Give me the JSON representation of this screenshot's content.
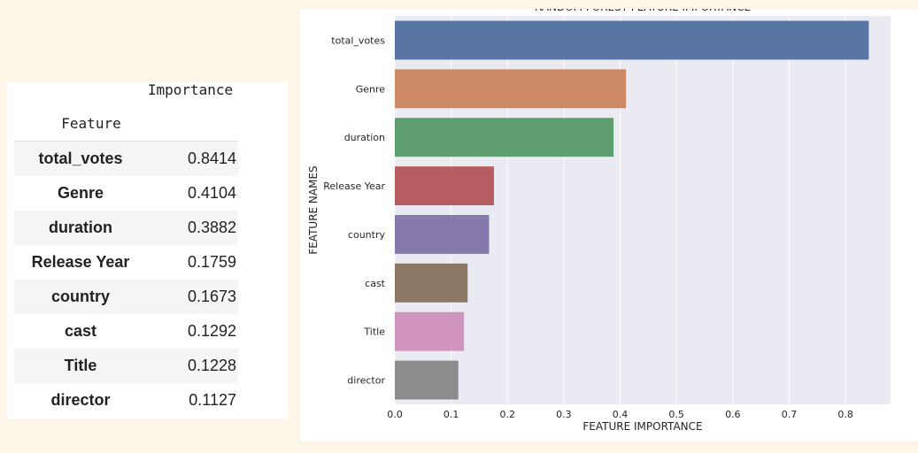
{
  "table": {
    "header_importance": "Importance",
    "header_feature": "Feature",
    "rows": [
      {
        "feature": "total_votes",
        "importance": "0.8414"
      },
      {
        "feature": "Genre",
        "importance": "0.4104"
      },
      {
        "feature": "duration",
        "importance": "0.3882"
      },
      {
        "feature": "Release Year",
        "importance": "0.1759"
      },
      {
        "feature": "country",
        "importance": "0.1673"
      },
      {
        "feature": "cast",
        "importance": "0.1292"
      },
      {
        "feature": "Title",
        "importance": "0.1228"
      },
      {
        "feature": "director",
        "importance": "0.1127"
      }
    ]
  },
  "chart_data": {
    "type": "bar",
    "orientation": "horizontal",
    "title": "RANDOM FOREST FEATURE IMPORTANCE",
    "xlabel": "FEATURE IMPORTANCE",
    "ylabel": "FEATURE NAMES",
    "categories": [
      "total_votes",
      "Genre",
      "duration",
      "Release Year",
      "country",
      "cast",
      "Title",
      "director"
    ],
    "values": [
      0.8414,
      0.4104,
      0.3882,
      0.1759,
      0.1673,
      0.1292,
      0.1228,
      0.1127
    ],
    "xlim": [
      0,
      0.88
    ],
    "xticks": [
      0.0,
      0.1,
      0.2,
      0.3,
      0.4,
      0.5,
      0.6,
      0.7,
      0.8
    ],
    "xtick_labels": [
      "0.0",
      "0.1",
      "0.2",
      "0.3",
      "0.4",
      "0.5",
      "0.6",
      "0.7",
      "0.8"
    ],
    "grid": true,
    "plot_background": "#eaeaf2",
    "colors": [
      "#5975a4",
      "#cc8963",
      "#5f9e6e",
      "#b55d60",
      "#857aab",
      "#8d7866",
      "#d095bf",
      "#8c8c8c"
    ]
  }
}
